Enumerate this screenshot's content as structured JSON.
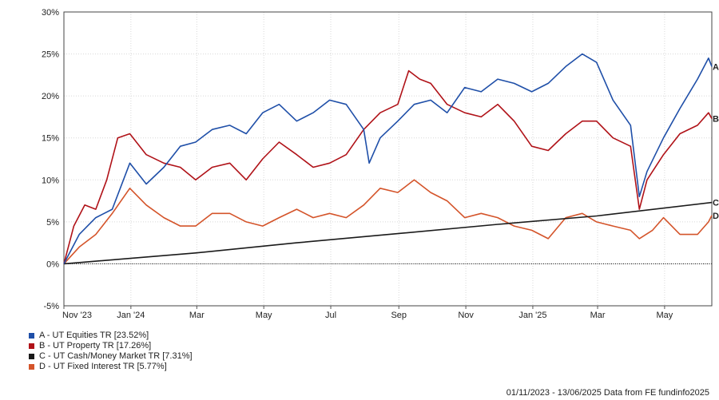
{
  "chart_data": {
    "type": "line",
    "title": "",
    "xlabel": "",
    "ylabel": "",
    "ylim": [
      -5,
      30
    ],
    "y_ticks": [
      "30%",
      "25%",
      "20%",
      "15%",
      "10%",
      "5%",
      "0%",
      "-5%"
    ],
    "y_tick_values": [
      30,
      25,
      20,
      15,
      10,
      5,
      0,
      -5
    ],
    "x_ticks": [
      "Nov '23",
      "Jan '24",
      "Mar",
      "May",
      "Jul",
      "Sep",
      "Nov",
      "Jan '25",
      "Mar",
      "May"
    ],
    "x_tick_dates": [
      "2023-11-01",
      "2024-01-01",
      "2024-03-01",
      "2024-05-01",
      "2024-07-01",
      "2024-09-01",
      "2024-11-01",
      "2025-01-01",
      "2025-03-01",
      "2025-05-01"
    ],
    "x_range": [
      "2023-11-01",
      "2025-06-13"
    ],
    "grid": true,
    "legend_position": "bottom-left",
    "series": [
      {
        "id": "A",
        "name": "A - UT Equities TR [23.52%]",
        "end_label": "A",
        "color": "#1f4fa8",
        "points": [
          [
            "2023-11-01",
            0
          ],
          [
            "2023-11-15",
            3.5
          ],
          [
            "2023-11-30",
            5.5
          ],
          [
            "2023-12-15",
            6.5
          ],
          [
            "2023-12-31",
            12
          ],
          [
            "2024-01-15",
            9.5
          ],
          [
            "2024-01-31",
            11.5
          ],
          [
            "2024-02-15",
            14
          ],
          [
            "2024-02-29",
            14.5
          ],
          [
            "2024-03-15",
            16
          ],
          [
            "2024-03-31",
            16.5
          ],
          [
            "2024-04-15",
            15.5
          ],
          [
            "2024-04-30",
            18
          ],
          [
            "2024-05-15",
            19
          ],
          [
            "2024-05-31",
            17
          ],
          [
            "2024-06-15",
            18
          ],
          [
            "2024-06-30",
            19.5
          ],
          [
            "2024-07-15",
            19
          ],
          [
            "2024-07-31",
            16
          ],
          [
            "2024-08-05",
            12
          ],
          [
            "2024-08-15",
            15
          ],
          [
            "2024-08-31",
            17
          ],
          [
            "2024-09-15",
            19
          ],
          [
            "2024-09-30",
            19.5
          ],
          [
            "2024-10-15",
            18
          ],
          [
            "2024-10-31",
            21
          ],
          [
            "2024-11-15",
            20.5
          ],
          [
            "2024-11-30",
            22
          ],
          [
            "2024-12-15",
            21.5
          ],
          [
            "2024-12-31",
            20.5
          ],
          [
            "2025-01-15",
            21.5
          ],
          [
            "2025-01-31",
            23.5
          ],
          [
            "2025-02-15",
            25
          ],
          [
            "2025-02-28",
            24
          ],
          [
            "2025-03-15",
            19.5
          ],
          [
            "2025-03-31",
            16.5
          ],
          [
            "2025-04-08",
            8
          ],
          [
            "2025-04-15",
            11
          ],
          [
            "2025-04-30",
            15
          ],
          [
            "2025-05-15",
            18.5
          ],
          [
            "2025-05-31",
            22
          ],
          [
            "2025-06-10",
            24.5
          ],
          [
            "2025-06-13",
            23.5
          ]
        ]
      },
      {
        "id": "B",
        "name": "B - UT Property TR [17.26%]",
        "end_label": "B",
        "color": "#b01218",
        "points": [
          [
            "2023-11-01",
            0
          ],
          [
            "2023-11-10",
            4.5
          ],
          [
            "2023-11-20",
            7
          ],
          [
            "2023-11-30",
            6.5
          ],
          [
            "2023-12-10",
            10
          ],
          [
            "2023-12-20",
            15
          ],
          [
            "2023-12-31",
            15.5
          ],
          [
            "2024-01-15",
            13
          ],
          [
            "2024-01-31",
            12
          ],
          [
            "2024-02-15",
            11.5
          ],
          [
            "2024-02-29",
            10
          ],
          [
            "2024-03-15",
            11.5
          ],
          [
            "2024-03-31",
            12
          ],
          [
            "2024-04-15",
            10
          ],
          [
            "2024-04-30",
            12.5
          ],
          [
            "2024-05-15",
            14.5
          ],
          [
            "2024-05-31",
            13
          ],
          [
            "2024-06-15",
            11.5
          ],
          [
            "2024-06-30",
            12
          ],
          [
            "2024-07-15",
            13
          ],
          [
            "2024-07-31",
            16
          ],
          [
            "2024-08-15",
            18
          ],
          [
            "2024-08-31",
            19
          ],
          [
            "2024-09-10",
            23
          ],
          [
            "2024-09-20",
            22
          ],
          [
            "2024-09-30",
            21.5
          ],
          [
            "2024-10-15",
            19
          ],
          [
            "2024-10-31",
            18
          ],
          [
            "2024-11-15",
            17.5
          ],
          [
            "2024-11-30",
            19
          ],
          [
            "2024-12-15",
            17
          ],
          [
            "2024-12-31",
            14
          ],
          [
            "2025-01-15",
            13.5
          ],
          [
            "2025-01-31",
            15.5
          ],
          [
            "2025-02-15",
            17
          ],
          [
            "2025-02-28",
            17
          ],
          [
            "2025-03-15",
            15
          ],
          [
            "2025-03-31",
            14
          ],
          [
            "2025-04-08",
            6.5
          ],
          [
            "2025-04-15",
            10
          ],
          [
            "2025-04-30",
            13
          ],
          [
            "2025-05-15",
            15.5
          ],
          [
            "2025-05-31",
            16.5
          ],
          [
            "2025-06-10",
            18
          ],
          [
            "2025-06-13",
            17.3
          ]
        ]
      },
      {
        "id": "C",
        "name": "C - UT Cash/Money Market TR [7.31%]",
        "end_label": "C",
        "color": "#1a1a1a",
        "points": [
          [
            "2023-11-01",
            0
          ],
          [
            "2024-02-29",
            1.3
          ],
          [
            "2024-05-31",
            2.5
          ],
          [
            "2024-08-31",
            3.6
          ],
          [
            "2024-11-30",
            4.7
          ],
          [
            "2025-02-28",
            5.7
          ],
          [
            "2025-06-13",
            7.31
          ]
        ]
      },
      {
        "id": "D",
        "name": "D - UT Fixed Interest TR [5.77%]",
        "end_label": "D",
        "color": "#d4542a",
        "points": [
          [
            "2023-11-01",
            0
          ],
          [
            "2023-11-15",
            2
          ],
          [
            "2023-11-30",
            3.5
          ],
          [
            "2023-12-15",
            6
          ],
          [
            "2023-12-31",
            9
          ],
          [
            "2024-01-15",
            7
          ],
          [
            "2024-01-31",
            5.5
          ],
          [
            "2024-02-15",
            4.5
          ],
          [
            "2024-02-29",
            4.5
          ],
          [
            "2024-03-15",
            6
          ],
          [
            "2024-03-31",
            6
          ],
          [
            "2024-04-15",
            5
          ],
          [
            "2024-04-30",
            4.5
          ],
          [
            "2024-05-15",
            5.5
          ],
          [
            "2024-05-31",
            6.5
          ],
          [
            "2024-06-15",
            5.5
          ],
          [
            "2024-06-30",
            6
          ],
          [
            "2024-07-15",
            5.5
          ],
          [
            "2024-07-31",
            7
          ],
          [
            "2024-08-15",
            9
          ],
          [
            "2024-08-31",
            8.5
          ],
          [
            "2024-09-15",
            10
          ],
          [
            "2024-09-30",
            8.5
          ],
          [
            "2024-10-15",
            7.5
          ],
          [
            "2024-10-31",
            5.5
          ],
          [
            "2024-11-15",
            6
          ],
          [
            "2024-11-30",
            5.5
          ],
          [
            "2024-12-15",
            4.5
          ],
          [
            "2024-12-31",
            4
          ],
          [
            "2025-01-15",
            3
          ],
          [
            "2025-01-31",
            5.5
          ],
          [
            "2025-02-15",
            6
          ],
          [
            "2025-02-28",
            5
          ],
          [
            "2025-03-15",
            4.5
          ],
          [
            "2025-03-31",
            4
          ],
          [
            "2025-04-08",
            3
          ],
          [
            "2025-04-20",
            4
          ],
          [
            "2025-04-30",
            5.5
          ],
          [
            "2025-05-15",
            3.5
          ],
          [
            "2025-05-31",
            3.5
          ],
          [
            "2025-06-10",
            5
          ],
          [
            "2025-06-13",
            5.77
          ]
        ]
      }
    ]
  },
  "footer": {
    "text": "01/11/2023 - 13/06/2025 Data from FE fundinfo2025"
  }
}
